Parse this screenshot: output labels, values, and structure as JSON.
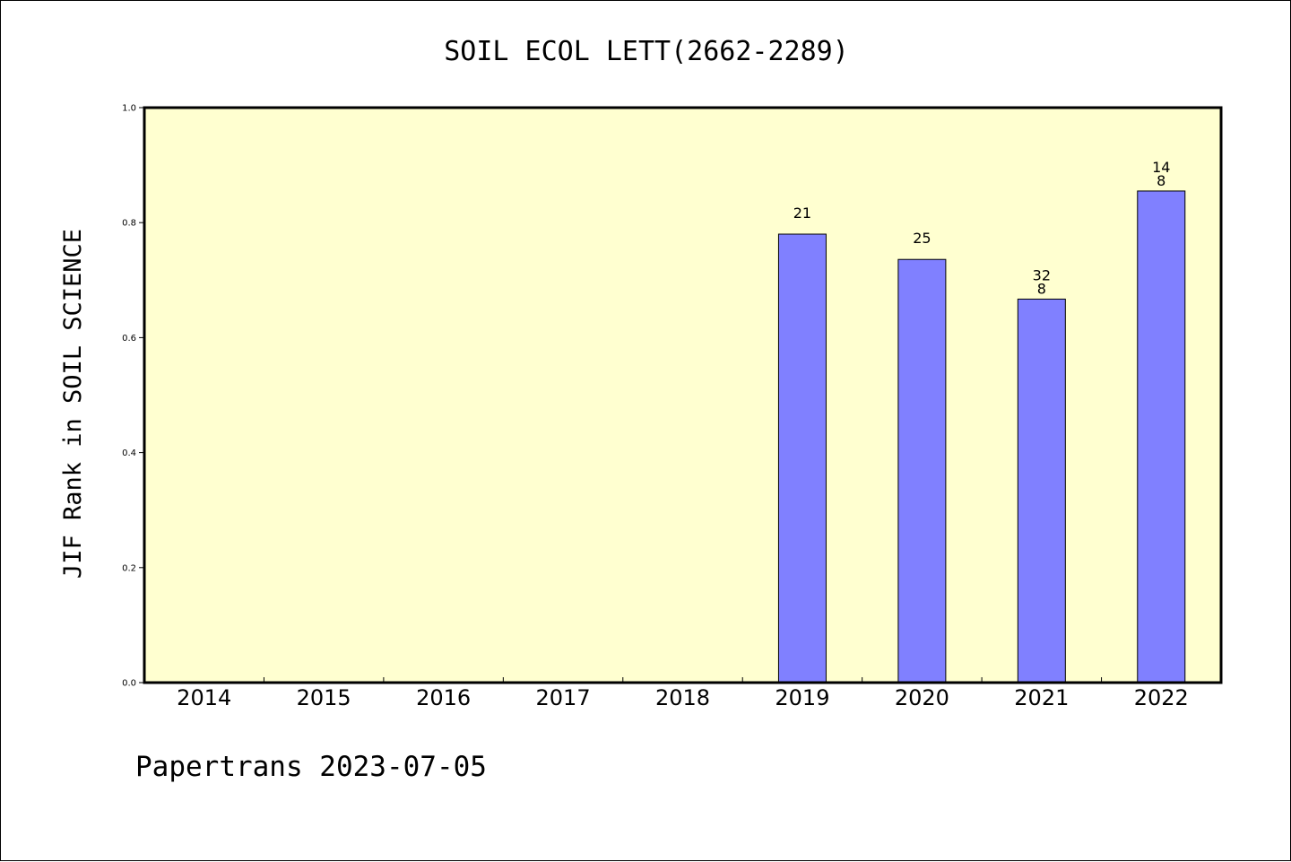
{
  "chart_data": {
    "type": "bar",
    "title": "SOIL ECOL LETT(2662-2289)",
    "ylabel": "JIF Rank in SOIL SCIENCE",
    "xlabel": "",
    "categories": [
      "2014",
      "2015",
      "2016",
      "2017",
      "2018",
      "2019",
      "2020",
      "2021",
      "2022"
    ],
    "values": [
      null,
      null,
      null,
      null,
      null,
      0.78,
      0.736,
      0.667,
      0.855
    ],
    "bar_labels": [
      [],
      [],
      [],
      [],
      [],
      [
        "21"
      ],
      [
        "25"
      ],
      [
        "32",
        "8"
      ],
      [
        "14",
        "8"
      ]
    ],
    "ylim": [
      0,
      1.0
    ],
    "yticks": [
      "0.0",
      "0.2",
      "0.4",
      "0.6",
      "0.8",
      "1.0"
    ],
    "grid": false,
    "colors": {
      "plot_background": "#ffffd0",
      "bar_fill": "#8080ff",
      "bar_stroke": "#000000",
      "axis": "#000000"
    }
  },
  "footer": {
    "text": "Papertrans 2023-07-05"
  }
}
